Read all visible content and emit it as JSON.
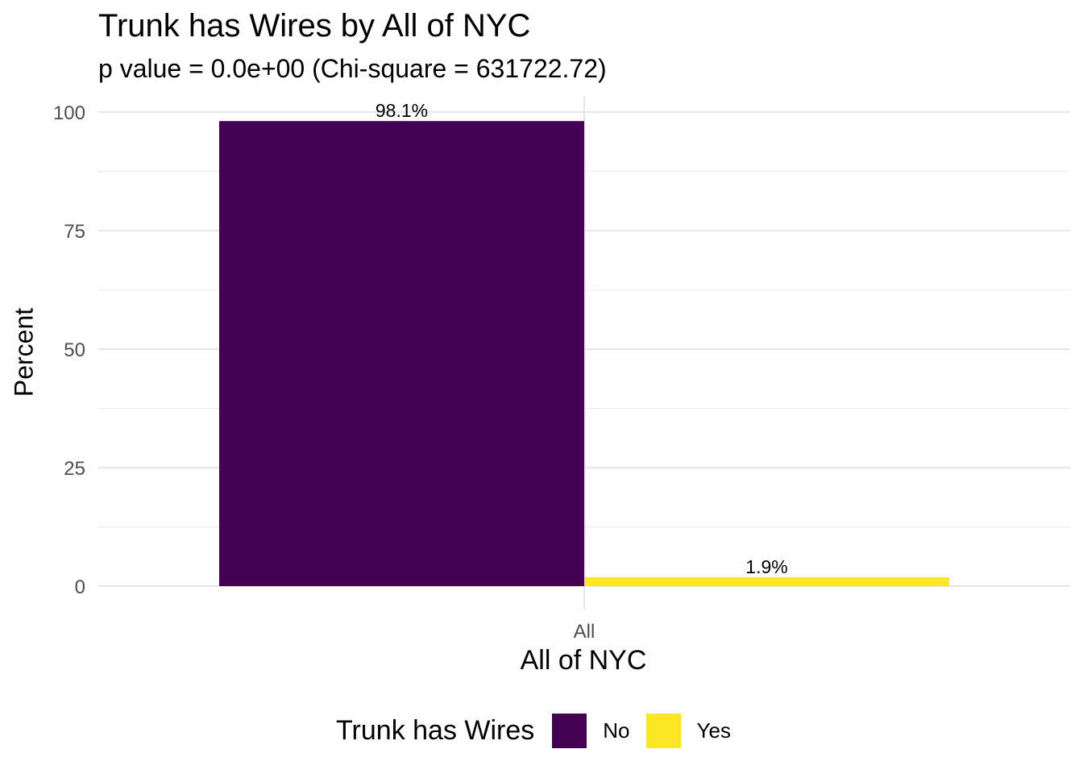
{
  "chart_data": {
    "type": "bar",
    "title": "Trunk has Wires by All of NYC",
    "subtitle": "p value = 0.0e+00 (Chi-square = 631722.72)",
    "xlabel": "All of NYC",
    "ylabel": "Percent",
    "categories": [
      "All"
    ],
    "series": [
      {
        "name": "No",
        "values": [
          98.1
        ],
        "label": "98.1%",
        "color": "#440154"
      },
      {
        "name": "Yes",
        "values": [
          1.9
        ],
        "label": "1.9%",
        "color": "#FDE725"
      }
    ],
    "ylim": [
      0,
      100
    ],
    "yticks": [
      0,
      25,
      50,
      75,
      100
    ],
    "grid": true,
    "legend": {
      "title": "Trunk has Wires",
      "position": "bottom"
    }
  }
}
